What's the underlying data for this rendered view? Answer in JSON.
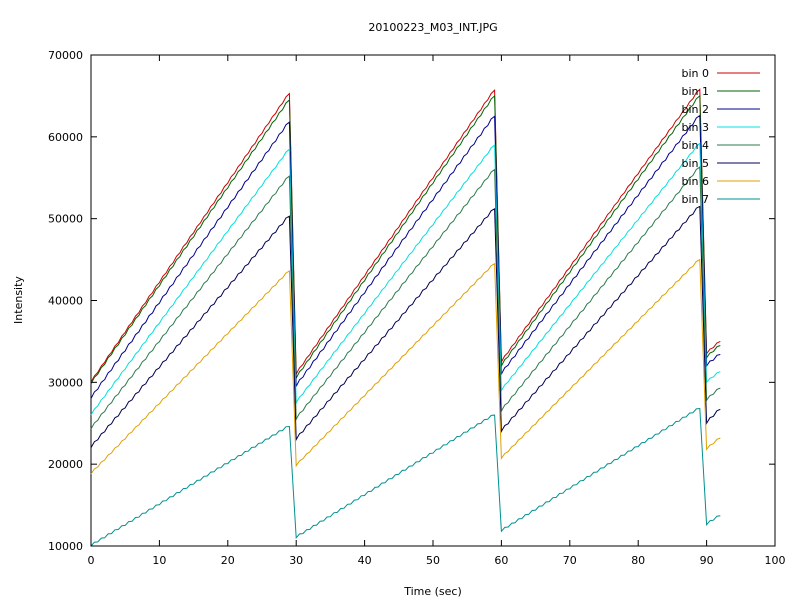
{
  "chart_data": {
    "type": "line",
    "title": "20100223_M03_INT.JPG",
    "xlabel": "Time (sec)",
    "ylabel": "Intensity",
    "xlim": [
      0,
      100
    ],
    "ylim": [
      10000,
      70000
    ],
    "xticks": [
      0,
      10,
      20,
      30,
      40,
      50,
      60,
      70,
      80,
      90,
      100
    ],
    "yticks": [
      10000,
      20000,
      30000,
      40000,
      50000,
      60000,
      70000
    ],
    "grid": false,
    "legend_position": "top-right",
    "x": [
      0,
      29,
      30,
      59,
      60,
      89,
      90,
      92
    ],
    "series": [
      {
        "name": "bin 0",
        "color": "#cc0000",
        "values": [
          30000,
          65300,
          31000,
          65700,
          32500,
          65800,
          33500,
          35000
        ]
      },
      {
        "name": "bin 1",
        "color": "#006400",
        "values": [
          29800,
          64500,
          30500,
          65000,
          32000,
          65000,
          33000,
          34500
        ]
      },
      {
        "name": "bin 2",
        "color": "#00008b",
        "values": [
          28000,
          61800,
          29500,
          62500,
          31000,
          62600,
          32000,
          33400
        ]
      },
      {
        "name": "bin 3",
        "color": "#00e0e0",
        "values": [
          26000,
          58500,
          27500,
          59000,
          29000,
          59200,
          30000,
          31300
        ]
      },
      {
        "name": "bin 4",
        "color": "#2e7a4e",
        "values": [
          24300,
          55200,
          25500,
          56000,
          26500,
          56300,
          27800,
          29300
        ]
      },
      {
        "name": "bin 5",
        "color": "#000050",
        "values": [
          22000,
          50300,
          23000,
          51200,
          24000,
          51500,
          25000,
          26700
        ]
      },
      {
        "name": "bin 6",
        "color": "#e0a000",
        "values": [
          18800,
          43600,
          19800,
          44500,
          20700,
          45000,
          21800,
          23200
        ]
      },
      {
        "name": "bin 7",
        "color": "#009090",
        "values": [
          10000,
          24600,
          11000,
          26000,
          11800,
          26800,
          12600,
          13700
        ]
      }
    ]
  }
}
